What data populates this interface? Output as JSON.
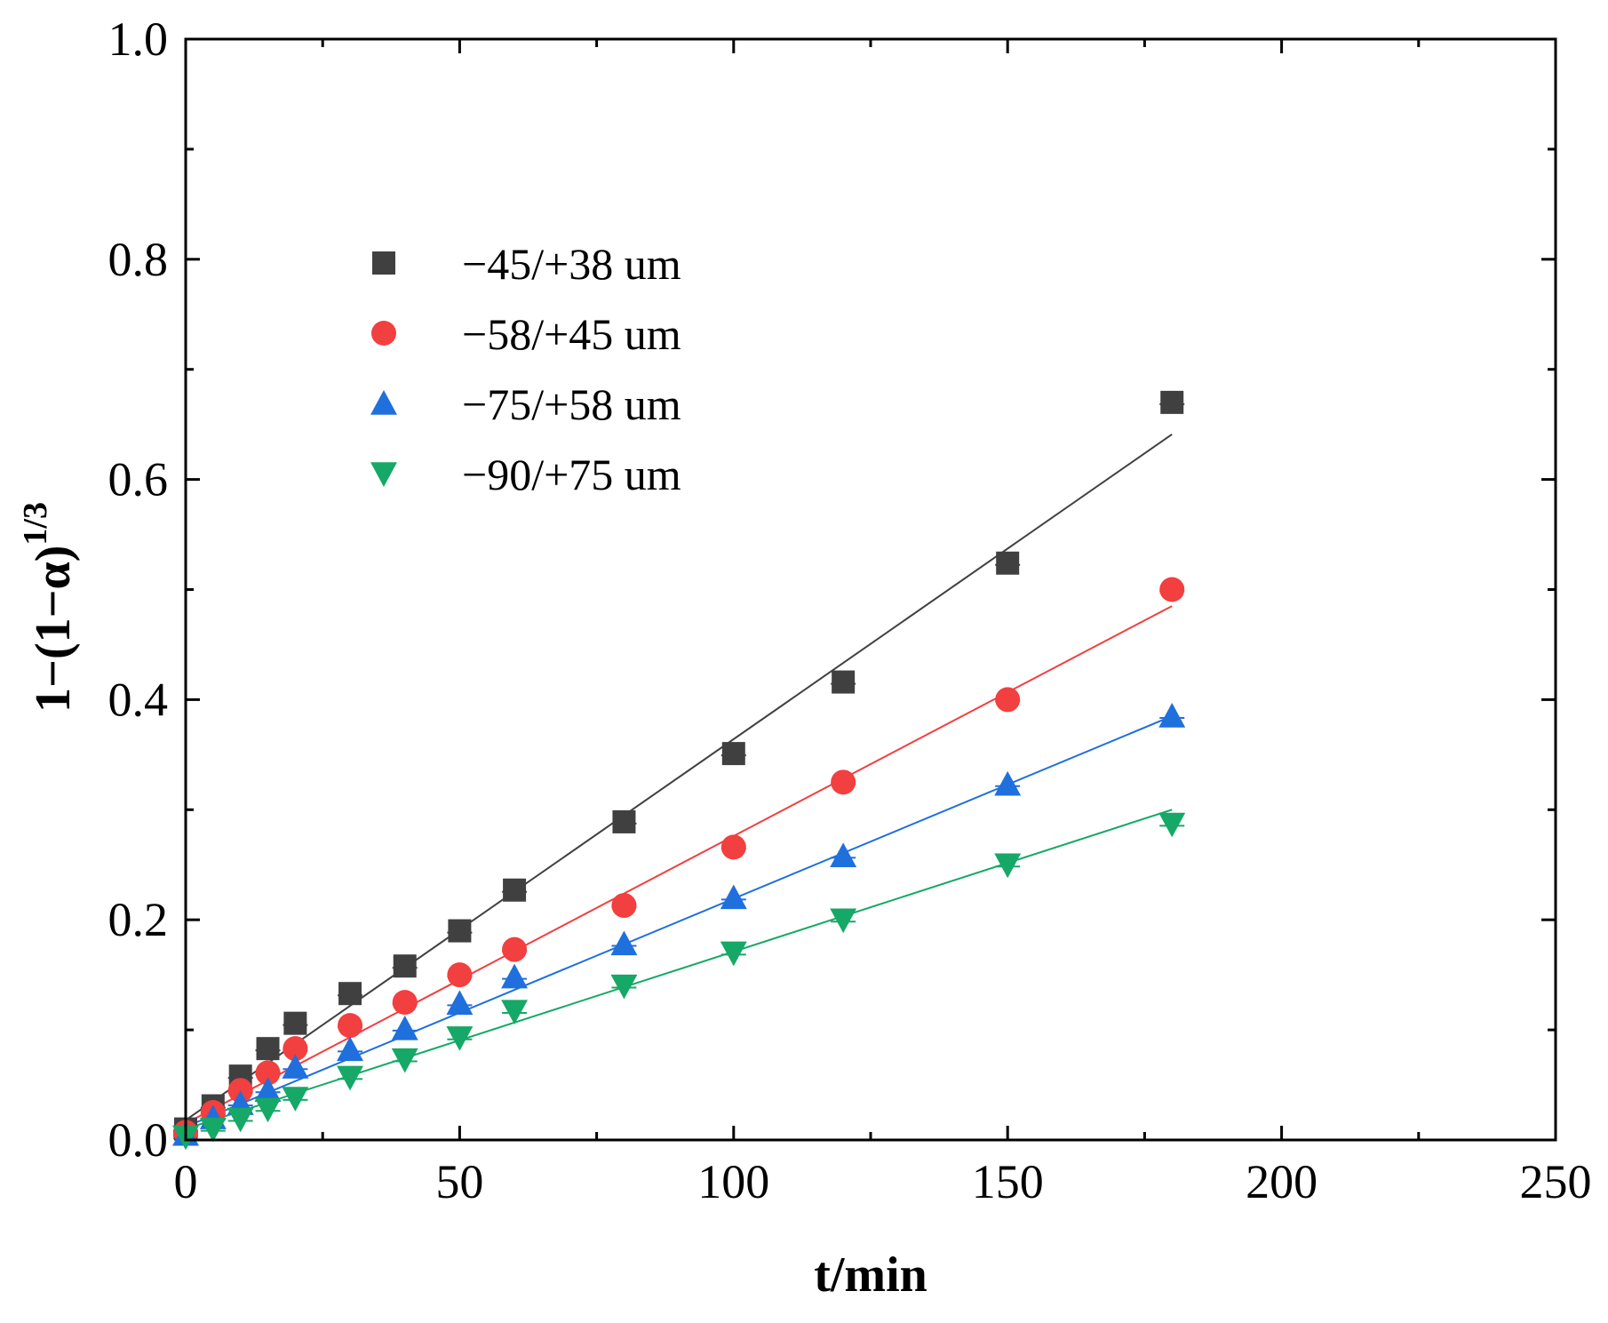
{
  "chart_data": {
    "type": "scatter",
    "xlabel": "t/min",
    "ylabel_base": "1−(1−α)",
    "ylabel_sup": "1/3",
    "xlim": [
      0,
      250
    ],
    "ylim": [
      0,
      1.0
    ],
    "x_ticks": [
      0,
      50,
      100,
      150,
      200,
      250
    ],
    "x_tick_labels": [
      "0",
      "50",
      "100",
      "150",
      "200",
      "250"
    ],
    "y_ticks": [
      0.0,
      0.2,
      0.4,
      0.6,
      0.8,
      1.0
    ],
    "y_tick_labels": [
      "0.0",
      "0.2",
      "0.4",
      "0.6",
      "0.8",
      "1.0"
    ],
    "grid": false,
    "legend_position": "upper-left",
    "series": [
      {
        "name": "−45/+38 um",
        "marker": "square",
        "color": "#404040",
        "x": [
          0,
          5,
          10,
          15,
          20,
          30,
          40,
          50,
          60,
          80,
          100,
          120,
          150,
          180
        ],
        "y": [
          0.01,
          0.031,
          0.058,
          0.083,
          0.106,
          0.133,
          0.158,
          0.19,
          0.227,
          0.289,
          0.351,
          0.416,
          0.524,
          0.67
        ],
        "fit": [
          [
            0,
            0.018
          ],
          [
            180,
            0.641
          ]
        ]
      },
      {
        "name": "−58/+45 um",
        "marker": "circle",
        "color": "#f23f3f",
        "x": [
          0,
          5,
          10,
          15,
          20,
          30,
          40,
          50,
          60,
          80,
          100,
          120,
          150,
          180
        ],
        "y": [
          0.007,
          0.025,
          0.045,
          0.061,
          0.083,
          0.104,
          0.125,
          0.15,
          0.173,
          0.213,
          0.266,
          0.325,
          0.4,
          0.5
        ],
        "fit": [
          [
            0,
            0.015
          ],
          [
            180,
            0.485
          ]
        ]
      },
      {
        "name": "−75/+58 um",
        "marker": "triangle-up",
        "color": "#1f6fdd",
        "x": [
          0,
          5,
          10,
          15,
          20,
          30,
          40,
          50,
          60,
          80,
          100,
          120,
          150,
          180
        ],
        "y": [
          0.005,
          0.02,
          0.033,
          0.045,
          0.066,
          0.082,
          0.101,
          0.124,
          0.148,
          0.178,
          0.22,
          0.258,
          0.323,
          0.385
        ],
        "fit": [
          [
            0,
            0.012
          ],
          [
            180,
            0.385
          ]
        ]
      },
      {
        "name": "−90/+75 um",
        "marker": "triangle-down",
        "color": "#16a866",
        "x": [
          0,
          5,
          10,
          15,
          20,
          30,
          40,
          50,
          60,
          80,
          100,
          120,
          150,
          180
        ],
        "y": [
          0.003,
          0.01,
          0.019,
          0.028,
          0.038,
          0.057,
          0.073,
          0.093,
          0.117,
          0.14,
          0.17,
          0.2,
          0.25,
          0.287
        ],
        "fit": [
          [
            0,
            0.01
          ],
          [
            180,
            0.3
          ]
        ]
      }
    ]
  }
}
